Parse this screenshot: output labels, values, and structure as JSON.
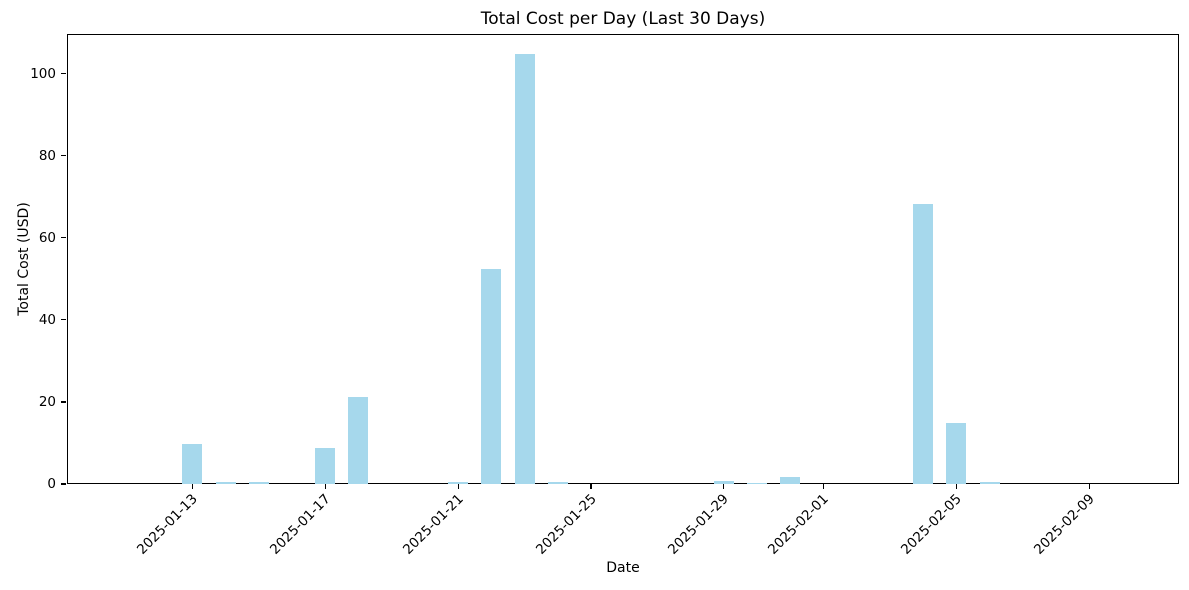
{
  "chart_data": {
    "type": "bar",
    "title": "Total Cost per Day (Last 30 Days)",
    "xlabel": "Date",
    "ylabel": "Total Cost (USD)",
    "background": "#ffffff",
    "bar_color": "#a6d8ec",
    "axis_color": "#000000",
    "grid": false,
    "legend": false,
    "ylim": [
      0,
      110
    ],
    "y_ticks": [
      0,
      20,
      40,
      60,
      80,
      100
    ],
    "x_ticks": [
      "2025-01-13",
      "2025-01-17",
      "2025-01-21",
      "2025-01-25",
      "2025-01-29",
      "2025-02-01",
      "2025-02-05",
      "2025-02-09"
    ],
    "categories": [
      "2025-01-11",
      "2025-01-12",
      "2025-01-13",
      "2025-01-14",
      "2025-01-15",
      "2025-01-16",
      "2025-01-17",
      "2025-01-18",
      "2025-01-19",
      "2025-01-20",
      "2025-01-21",
      "2025-01-22",
      "2025-01-23",
      "2025-01-24",
      "2025-01-25",
      "2025-01-26",
      "2025-01-27",
      "2025-01-28",
      "2025-01-29",
      "2025-01-30",
      "2025-01-31",
      "2025-02-01",
      "2025-02-02",
      "2025-02-03",
      "2025-02-04",
      "2025-02-05",
      "2025-02-06",
      "2025-02-07",
      "2025-02-08",
      "2025-02-09"
    ],
    "values": [
      0,
      0,
      9.8,
      0.5,
      0.4,
      0,
      8.7,
      21.3,
      0,
      0,
      0.6,
      52.4,
      104.8,
      0.4,
      0,
      0,
      0,
      0,
      0.65,
      0.3,
      1.6,
      0,
      0,
      0,
      68.2,
      14.8,
      0.4,
      0,
      0,
      0
    ]
  }
}
